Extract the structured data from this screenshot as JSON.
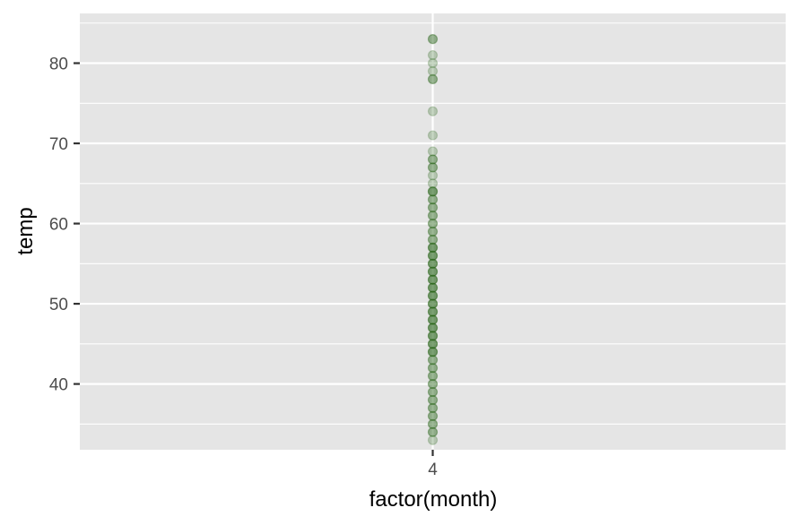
{
  "chart_data": {
    "type": "scatter",
    "xlabel": "factor(month)",
    "ylabel": "temp",
    "categories": [
      "4"
    ],
    "ylim": [
      31.8,
      86.2
    ],
    "y_ticks": [
      40,
      50,
      60,
      70,
      80
    ],
    "y_tick_labels": [
      "40",
      "50",
      "60",
      "70",
      "80"
    ],
    "grid": true,
    "panel_color": "#e5e5e5",
    "gridline_color": "#ffffff",
    "point_color": "#1f5f0f",
    "point_alpha": 0.25,
    "series": [
      {
        "category": "4",
        "values": [
          33,
          34,
          34,
          35,
          35,
          36,
          36,
          37,
          37,
          38,
          38,
          39,
          39,
          40,
          40,
          41,
          41,
          42,
          42,
          43,
          43,
          44,
          44,
          44,
          45,
          45,
          45,
          46,
          46,
          46,
          47,
          47,
          47,
          48,
          48,
          48,
          49,
          49,
          49,
          50,
          50,
          50,
          51,
          51,
          51,
          52,
          52,
          52,
          53,
          53,
          53,
          54,
          54,
          54,
          55,
          55,
          55,
          56,
          56,
          56,
          57,
          57,
          57,
          58,
          58,
          59,
          59,
          60,
          60,
          61,
          61,
          62,
          62,
          63,
          63,
          64,
          64,
          64,
          65,
          66,
          67,
          67,
          68,
          68,
          69,
          71,
          74,
          78,
          78,
          79,
          80,
          81,
          83,
          83
        ]
      }
    ]
  }
}
